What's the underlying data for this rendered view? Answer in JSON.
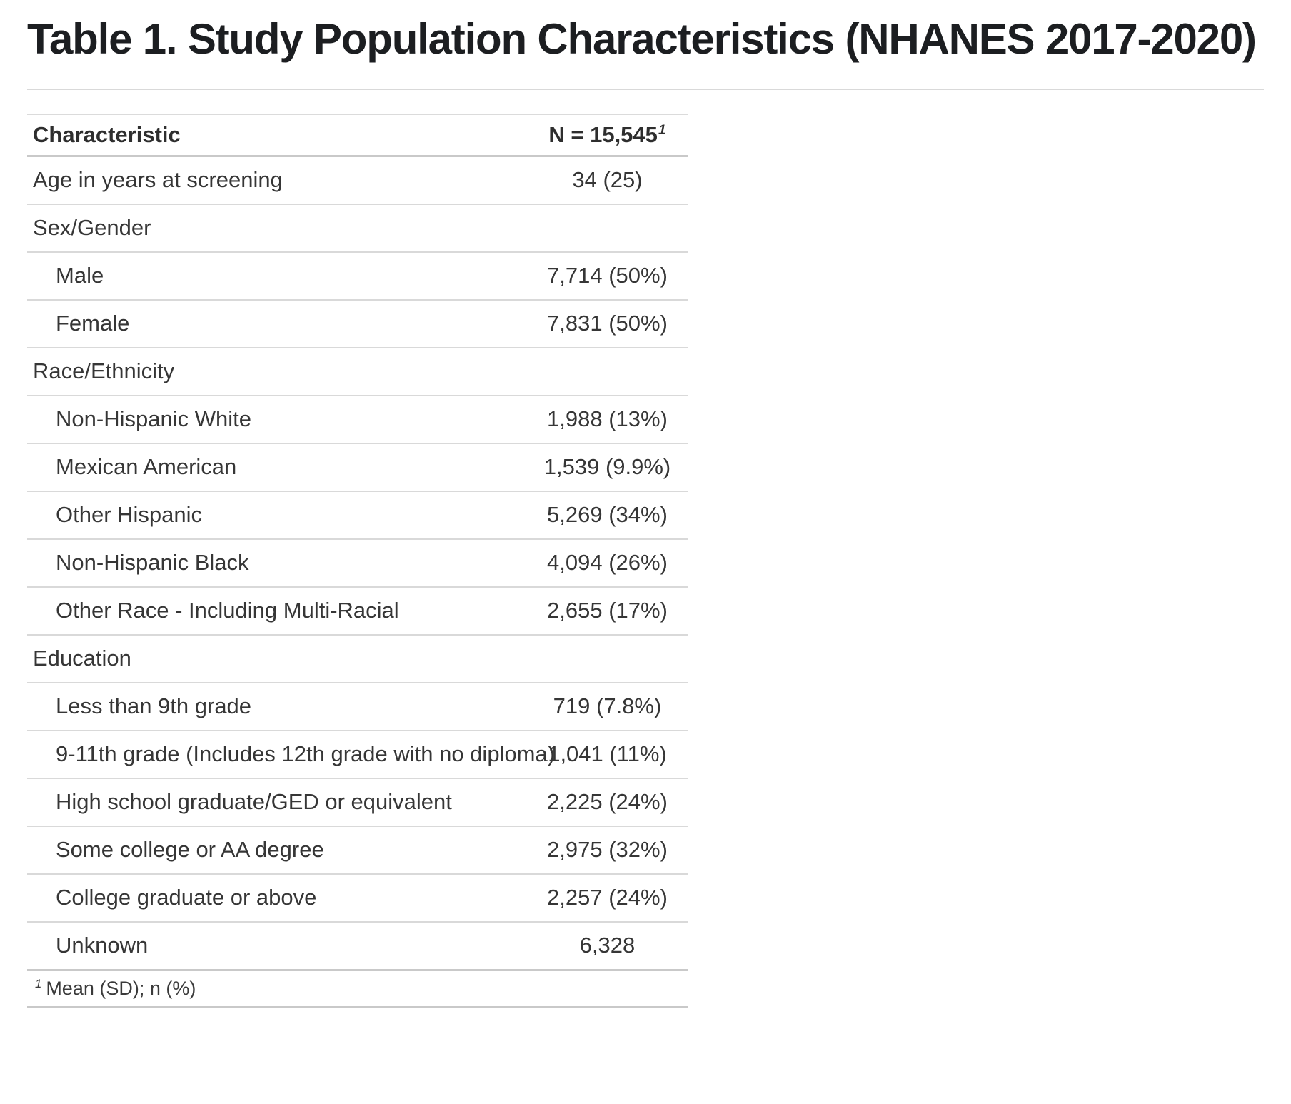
{
  "title": "Table 1. Study Population Characteristics (NHANES 2017-2020)",
  "table": {
    "header": {
      "characteristic_label": "Characteristic",
      "n_label": "N = 15,545",
      "n_footnote_mark": "1"
    },
    "rows": [
      {
        "label": "Age in years at screening",
        "value": "34 (25)",
        "indent": false
      },
      {
        "label": "Sex/Gender",
        "value": "",
        "indent": false
      },
      {
        "label": "Male",
        "value": "7,714 (50%)",
        "indent": true
      },
      {
        "label": "Female",
        "value": "7,831 (50%)",
        "indent": true
      },
      {
        "label": "Race/Ethnicity",
        "value": "",
        "indent": false
      },
      {
        "label": "Non-Hispanic White",
        "value": "1,988 (13%)",
        "indent": true
      },
      {
        "label": "Mexican American",
        "value": "1,539 (9.9%)",
        "indent": true
      },
      {
        "label": "Other Hispanic",
        "value": "5,269 (34%)",
        "indent": true
      },
      {
        "label": "Non-Hispanic Black",
        "value": "4,094 (26%)",
        "indent": true
      },
      {
        "label": "Other Race - Including Multi-Racial",
        "value": "2,655 (17%)",
        "indent": true
      },
      {
        "label": "Education",
        "value": "",
        "indent": false
      },
      {
        "label": "Less than 9th grade",
        "value": "719 (7.8%)",
        "indent": true
      },
      {
        "label": "9-11th grade (Includes 12th grade with no diploma)",
        "value": "1,041 (11%)",
        "indent": true
      },
      {
        "label": "High school graduate/GED or equivalent",
        "value": "2,225 (24%)",
        "indent": true
      },
      {
        "label": "Some college or AA degree",
        "value": "2,975 (32%)",
        "indent": true
      },
      {
        "label": "College graduate or above",
        "value": "2,257 (24%)",
        "indent": true
      },
      {
        "label": "Unknown",
        "value": "6,328",
        "indent": true
      }
    ],
    "footnote": {
      "mark": "1",
      "text": "Mean (SD); n (%)"
    }
  },
  "colors": {
    "title_text": "#1c1e21",
    "body_text": "#363636",
    "row_divider": "#d9d9d9",
    "section_divider": "#c9c9c9",
    "background": "#ffffff"
  }
}
